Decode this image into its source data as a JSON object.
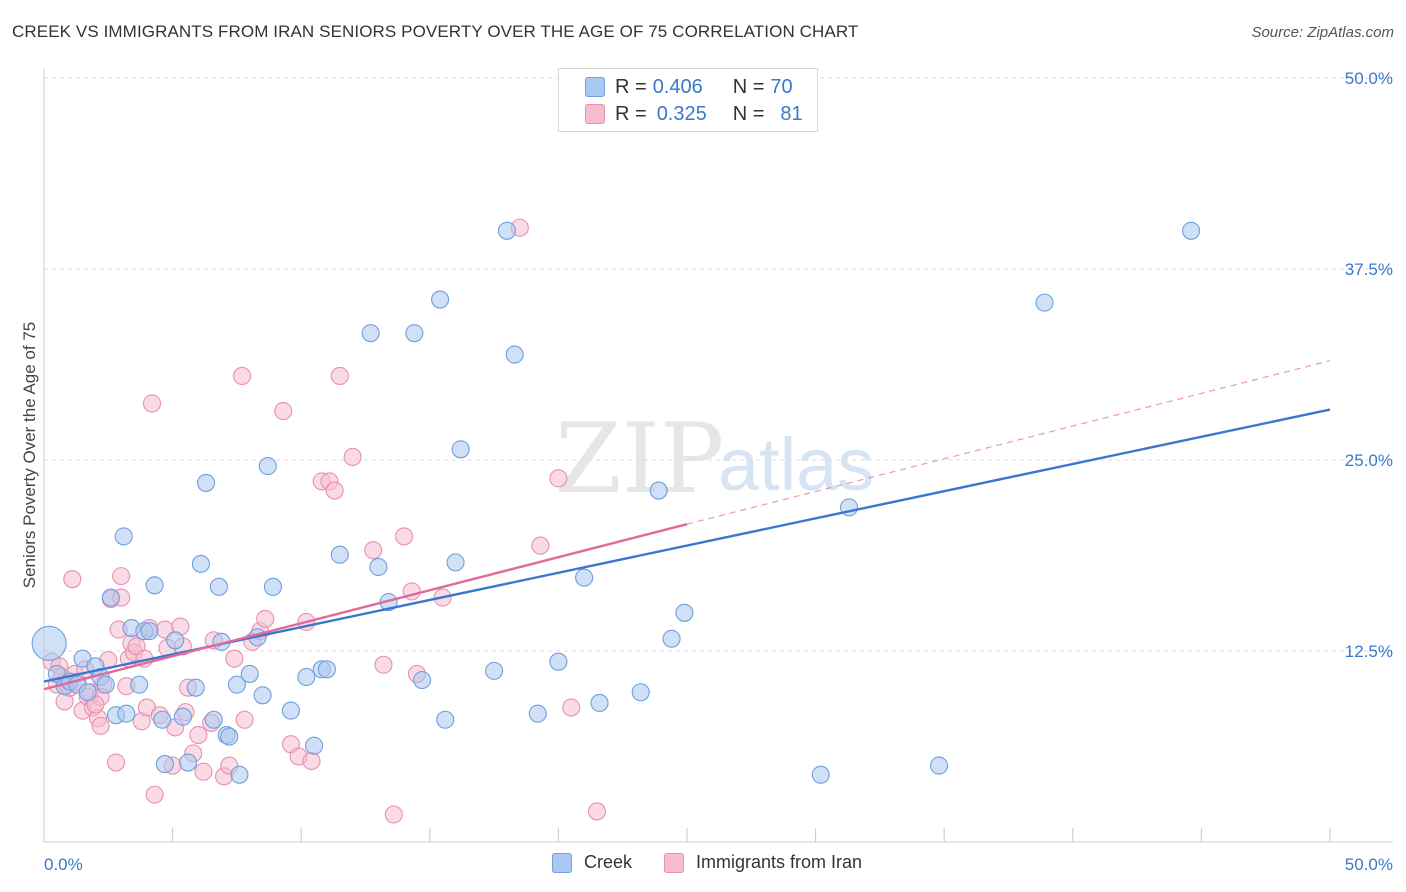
{
  "title": "CREEK VS IMMIGRANTS FROM IRAN SENIORS POVERTY OVER THE AGE OF 75 CORRELATION CHART",
  "source": "Source: ZipAtlas.com",
  "watermark": {
    "zip": "ZIP",
    "atlas": "atlas"
  },
  "legend": {
    "rows": [
      {
        "r_label": "R =",
        "r_value": "0.406",
        "n_label": "N =",
        "n_value": "70"
      },
      {
        "r_label": "R =",
        "r_value": "0.325",
        "n_label": "N =",
        "n_value": "81"
      }
    ]
  },
  "colors": {
    "creek_fill": "#aac8f0",
    "creek_stroke": "#6f9fdc",
    "creek_line": "#3a78d0",
    "iran_fill": "#f6bdd0",
    "iran_stroke": "#e890b0",
    "iran_line": "#e26a98",
    "grid": "#dcdcdc",
    "tick_label": "#3a78c9"
  },
  "chart_data": {
    "type": "scatter",
    "title": "CREEK VS IMMIGRANTS FROM IRAN SENIORS POVERTY OVER THE AGE OF 75 CORRELATION CHART",
    "xlabel": "",
    "ylabel": "Seniors Poverty Over the Age of 75",
    "xlim": [
      0,
      50
    ],
    "ylim": [
      0,
      50
    ],
    "x_tick_labels": [
      "0.0%",
      "50.0%"
    ],
    "y_ticks": [
      12.5,
      25.0,
      37.5,
      50.0
    ],
    "y_tick_labels": [
      "12.5%",
      "25.0%",
      "37.5%",
      "50.0%"
    ],
    "grid": true,
    "legend_position": "top-center",
    "series": [
      {
        "name": "Creek",
        "trend": {
          "x0": 0,
          "y0": 10.5,
          "x1": 50,
          "y1": 28.3,
          "style": "solid"
        },
        "points": [
          [
            0.2,
            13.0
          ],
          [
            0.5,
            11.0
          ],
          [
            0.8,
            10.2
          ],
          [
            1.0,
            10.5
          ],
          [
            1.3,
            10.3
          ],
          [
            1.5,
            12.0
          ],
          [
            2.0,
            11.5
          ],
          [
            2.2,
            10.8
          ],
          [
            2.4,
            10.3
          ],
          [
            2.6,
            16.0
          ],
          [
            2.8,
            8.3
          ],
          [
            3.1,
            20.0
          ],
          [
            3.2,
            8.4
          ],
          [
            3.4,
            14.0
          ],
          [
            3.7,
            10.3
          ],
          [
            3.9,
            13.8
          ],
          [
            4.1,
            13.8
          ],
          [
            4.3,
            16.8
          ],
          [
            4.6,
            8.0
          ],
          [
            4.7,
            5.1
          ],
          [
            5.1,
            13.2
          ],
          [
            5.4,
            8.2
          ],
          [
            5.6,
            5.2
          ],
          [
            5.9,
            10.1
          ],
          [
            6.1,
            18.2
          ],
          [
            6.3,
            23.5
          ],
          [
            6.6,
            8.0
          ],
          [
            6.8,
            16.7
          ],
          [
            7.1,
            7.0
          ],
          [
            7.2,
            6.9
          ],
          [
            7.5,
            10.3
          ],
          [
            7.6,
            4.4
          ],
          [
            8.0,
            11.0
          ],
          [
            8.3,
            13.4
          ],
          [
            8.5,
            9.6
          ],
          [
            8.7,
            24.6
          ],
          [
            8.9,
            16.7
          ],
          [
            9.6,
            8.6
          ],
          [
            10.2,
            10.8
          ],
          [
            10.5,
            6.3
          ],
          [
            10.8,
            11.3
          ],
          [
            11.0,
            11.3
          ],
          [
            11.5,
            18.8
          ],
          [
            12.7,
            33.3
          ],
          [
            13.0,
            18.0
          ],
          [
            13.4,
            15.7
          ],
          [
            14.4,
            33.3
          ],
          [
            14.7,
            10.6
          ],
          [
            15.4,
            35.5
          ],
          [
            15.6,
            8.0
          ],
          [
            16.0,
            18.3
          ],
          [
            16.2,
            25.7
          ],
          [
            17.5,
            11.2
          ],
          [
            18.0,
            40.0
          ],
          [
            18.3,
            31.9
          ],
          [
            19.2,
            8.4
          ],
          [
            20.0,
            11.8
          ],
          [
            21.0,
            17.3
          ],
          [
            21.6,
            9.1
          ],
          [
            23.2,
            9.8
          ],
          [
            23.9,
            23.0
          ],
          [
            24.4,
            13.3
          ],
          [
            24.9,
            15.0
          ],
          [
            30.2,
            4.4
          ],
          [
            31.3,
            21.9
          ],
          [
            34.8,
            5.0
          ],
          [
            38.9,
            35.3
          ],
          [
            44.6,
            40.0
          ],
          [
            1.7,
            9.8
          ],
          [
            6.9,
            13.1
          ]
        ]
      },
      {
        "name": "Immigrants from Iran",
        "trend": {
          "x0": 0,
          "y0": 10.0,
          "x1": 25,
          "y1": 20.8,
          "x2": 50,
          "y2": 31.5,
          "style": "solid-then-dashed"
        },
        "points": [
          [
            0.3,
            11.8
          ],
          [
            0.5,
            10.3
          ],
          [
            0.6,
            11.5
          ],
          [
            0.8,
            9.2
          ],
          [
            1.0,
            10.1
          ],
          [
            1.2,
            11.0
          ],
          [
            1.3,
            10.5
          ],
          [
            1.5,
            8.6
          ],
          [
            1.7,
            9.5
          ],
          [
            1.8,
            9.8
          ],
          [
            1.9,
            8.8
          ],
          [
            2.1,
            8.1
          ],
          [
            2.2,
            7.6
          ],
          [
            2.3,
            10.3
          ],
          [
            2.5,
            11.9
          ],
          [
            2.6,
            15.9
          ],
          [
            2.8,
            5.2
          ],
          [
            2.9,
            13.9
          ],
          [
            3.0,
            17.4
          ],
          [
            3.2,
            10.2
          ],
          [
            3.3,
            12.0
          ],
          [
            3.4,
            13.0
          ],
          [
            3.5,
            12.4
          ],
          [
            3.6,
            12.8
          ],
          [
            3.8,
            7.9
          ],
          [
            3.9,
            12.0
          ],
          [
            4.0,
            8.8
          ],
          [
            4.1,
            14.0
          ],
          [
            4.2,
            28.7
          ],
          [
            4.3,
            3.1
          ],
          [
            4.5,
            8.3
          ],
          [
            4.7,
            13.9
          ],
          [
            4.8,
            12.7
          ],
          [
            5.0,
            5.0
          ],
          [
            5.1,
            7.5
          ],
          [
            5.3,
            14.1
          ],
          [
            5.4,
            12.8
          ],
          [
            5.6,
            10.1
          ],
          [
            5.8,
            5.8
          ],
          [
            6.0,
            7.0
          ],
          [
            6.5,
            7.8
          ],
          [
            6.6,
            13.2
          ],
          [
            7.0,
            4.3
          ],
          [
            7.2,
            5.0
          ],
          [
            7.4,
            12.0
          ],
          [
            7.7,
            30.5
          ],
          [
            7.8,
            8.0
          ],
          [
            8.1,
            13.1
          ],
          [
            8.4,
            13.8
          ],
          [
            8.6,
            14.6
          ],
          [
            9.3,
            28.2
          ],
          [
            9.6,
            6.4
          ],
          [
            9.9,
            5.6
          ],
          [
            10.2,
            14.4
          ],
          [
            10.4,
            5.3
          ],
          [
            10.8,
            23.6
          ],
          [
            11.1,
            23.6
          ],
          [
            11.3,
            23.0
          ],
          [
            11.5,
            30.5
          ],
          [
            12.0,
            25.2
          ],
          [
            12.8,
            19.1
          ],
          [
            13.2,
            11.6
          ],
          [
            13.6,
            1.8
          ],
          [
            14.0,
            20.0
          ],
          [
            14.3,
            16.4
          ],
          [
            14.5,
            11.0
          ],
          [
            15.5,
            16.0
          ],
          [
            18.5,
            40.2
          ],
          [
            19.3,
            19.4
          ],
          [
            20.0,
            23.8
          ],
          [
            20.5,
            8.8
          ],
          [
            21.5,
            2.0
          ],
          [
            1.1,
            17.2
          ],
          [
            0.9,
            10.3
          ],
          [
            3.0,
            16.0
          ],
          [
            2.2,
            9.5
          ],
          [
            2.0,
            9.0
          ],
          [
            1.6,
            11.3
          ],
          [
            0.7,
            10.8
          ],
          [
            6.2,
            4.6
          ],
          [
            5.5,
            8.5
          ]
        ]
      }
    ]
  },
  "axis": {
    "x_left_label": "0.0%",
    "x_right_label": "50.0%"
  },
  "bottom_legend": [
    "Creek",
    "Immigrants from Iran"
  ]
}
